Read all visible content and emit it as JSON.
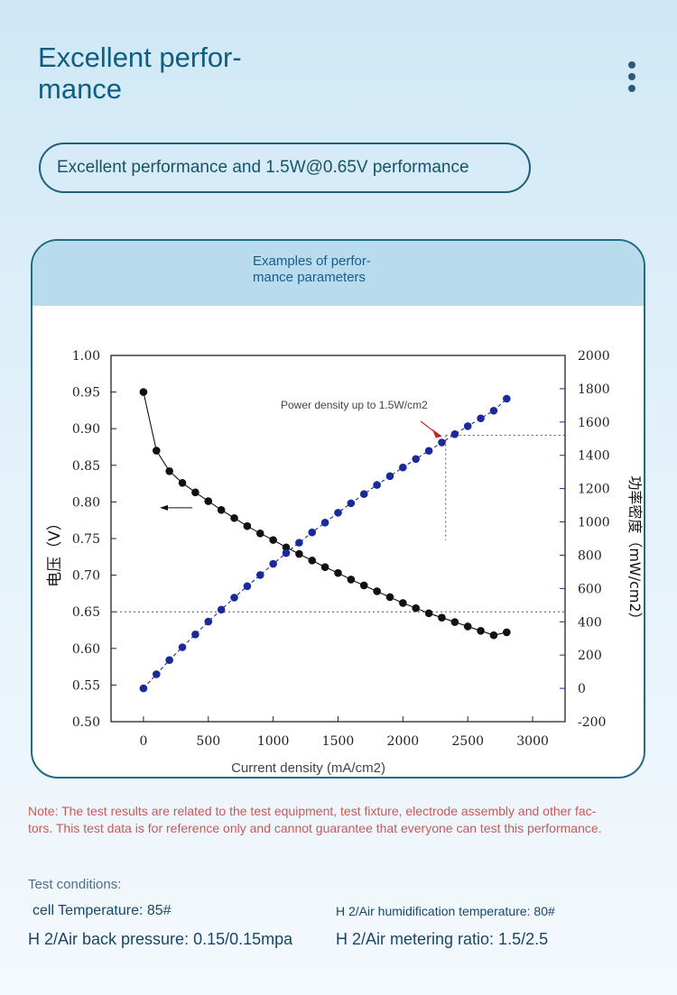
{
  "page": {
    "title": "Excellent perfor-\nmance",
    "subtitle": "Excellent performance and 1.5W@0.65V performance"
  },
  "card": {
    "title": "Examples of perfor-\nmance parameters"
  },
  "chart_data": {
    "type": "line",
    "xlabel": "Current density (mA/cm2)",
    "ylabel_left": "电压（V）",
    "ylabel_right": "功率密度（mW/cm2）",
    "x_ticks": [
      "0",
      "500",
      "1000",
      "1500",
      "2000",
      "2500",
      "3000"
    ],
    "y_left_ticks": [
      "0.50",
      "0.55",
      "0.60",
      "0.65",
      "0.70",
      "0.75",
      "0.80",
      "0.85",
      "0.90",
      "0.95",
      "1.00"
    ],
    "y_right_ticks": [
      "-200",
      "0",
      "200",
      "400",
      "600",
      "800",
      "1000",
      "1200",
      "1400",
      "1600",
      "1800",
      "2000"
    ],
    "xlim": [
      -250,
      3250
    ],
    "ylim_left": [
      0.5,
      1.0
    ],
    "ylim_right": [
      -200,
      2000
    ],
    "grid": false,
    "annotation": "Power density up to 1.5W/cm2",
    "reference_lines": {
      "voltage": 0.65,
      "power_density": 1520,
      "current_density": 2330
    },
    "series": [
      {
        "axis": "left",
        "color": "#111111",
        "x": [
          0,
          100,
          200,
          300,
          400,
          500,
          600,
          700,
          800,
          900,
          1000,
          1100,
          1200,
          1300,
          1400,
          1500,
          1600,
          1700,
          1800,
          1900,
          2000,
          2100,
          2200,
          2300,
          2400,
          2500,
          2600,
          2700,
          2800
        ],
        "values": [
          0.95,
          0.87,
          0.842,
          0.826,
          0.813,
          0.801,
          0.789,
          0.778,
          0.767,
          0.757,
          0.748,
          0.738,
          0.729,
          0.72,
          0.711,
          0.703,
          0.694,
          0.686,
          0.678,
          0.67,
          0.662,
          0.655,
          0.648,
          0.642,
          0.636,
          0.63,
          0.624,
          0.618,
          0.622
        ]
      },
      {
        "axis": "right",
        "color": "#1b2a9a",
        "x": [
          0,
          100,
          200,
          300,
          400,
          500,
          600,
          700,
          800,
          900,
          1000,
          1100,
          1200,
          1300,
          1400,
          1500,
          1600,
          1700,
          1800,
          1900,
          2000,
          2100,
          2200,
          2300,
          2400,
          2500,
          2600,
          2700,
          2800
        ],
        "values": [
          0,
          85,
          170,
          247,
          324,
          401,
          473,
          545,
          614,
          681,
          748,
          813,
          875,
          937,
          996,
          1055,
          1112,
          1167,
          1222,
          1275,
          1327,
          1378,
          1427,
          1477,
          1527,
          1575,
          1622,
          1668,
          1740
        ]
      }
    ]
  },
  "note": "Note: The test results are related to the test equipment, test fixture, electrode assembly and other fac-\ntors. This test data is for reference only and cannot guarantee that everyone can test this performance.",
  "conditions": {
    "heading": "Test conditions:",
    "items": [
      "cell Temperature: 85#",
      "H 2/Air humidification temperature: 80#",
      "H 2/Air back pressure: 0.15/0.15mpa",
      "H 2/Air metering ratio: 1.5/2.5"
    ]
  }
}
